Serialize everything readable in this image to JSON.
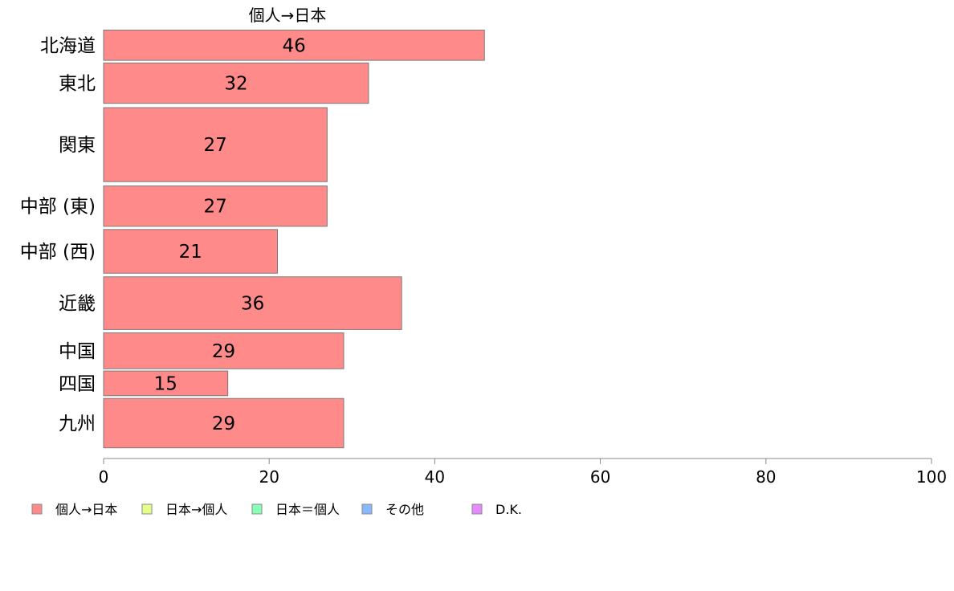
{
  "chart_data": {
    "type": "bar",
    "orientation": "horizontal",
    "series_title": "個人→日本",
    "categories": [
      "北海道",
      "東北",
      "関東",
      "中部 (東)",
      "中部 (西)",
      "近畿",
      "中国",
      "四国",
      "九州"
    ],
    "values": [
      46,
      32,
      27,
      27,
      21,
      36,
      29,
      15,
      29
    ],
    "band_weights": [
      2.7,
      3.6,
      6.6,
      3.6,
      3.9,
      4.7,
      3.2,
      2.2,
      4.4
    ],
    "xlim": [
      0,
      100
    ],
    "xticks": [
      0,
      20,
      40,
      60,
      80,
      100
    ],
    "grid": false,
    "bar_color": "#ff8a8a",
    "bar_edge_color": "#7a7a7a",
    "legend_position": "bottom-left",
    "legend": [
      {
        "label": "個人→日本",
        "color": "#ff8a8a"
      },
      {
        "label": "日本→個人",
        "color": "#e6ff8a"
      },
      {
        "label": "日本＝個人",
        "color": "#8affb8"
      },
      {
        "label": "その他",
        "color": "#8ab8ff"
      },
      {
        "label": "D.K.",
        "color": "#e68aff"
      }
    ]
  }
}
